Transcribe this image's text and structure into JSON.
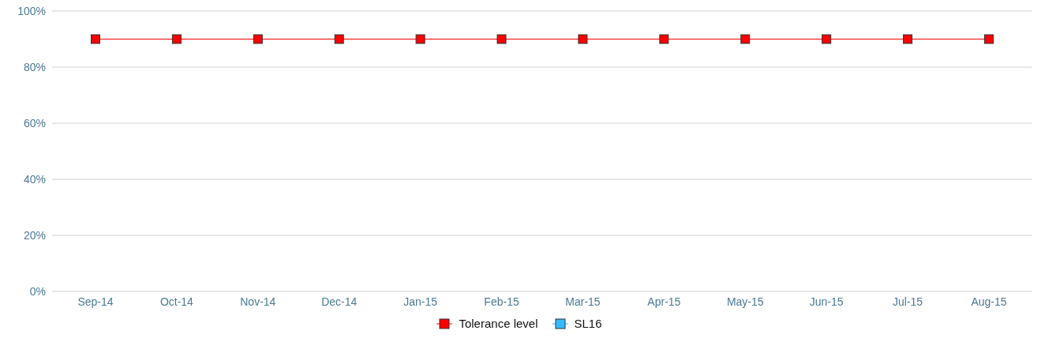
{
  "chart_data": {
    "type": "line",
    "categories": [
      "Sep-14",
      "Oct-14",
      "Nov-14",
      "Dec-14",
      "Jan-15",
      "Feb-15",
      "Mar-15",
      "Apr-15",
      "May-15",
      "Jun-15",
      "Jul-15",
      "Aug-15"
    ],
    "series": [
      {
        "name": "Tolerance level",
        "color": "#ff0000",
        "values": [
          90,
          90,
          90,
          90,
          90,
          90,
          90,
          90,
          90,
          90,
          90,
          90
        ]
      },
      {
        "name": "SL16",
        "color": "#33bbff",
        "values": [
          null,
          null,
          null,
          null,
          null,
          null,
          null,
          null,
          null,
          null,
          null,
          null
        ]
      }
    ],
    "ylim": [
      0,
      100
    ],
    "yticks": [
      {
        "value": 0,
        "label": "0%"
      },
      {
        "value": 20,
        "label": "20%"
      },
      {
        "value": 40,
        "label": "40%"
      },
      {
        "value": 60,
        "label": "60%"
      },
      {
        "value": 80,
        "label": "80%"
      },
      {
        "value": 100,
        "label": "100%"
      }
    ],
    "grid": "y",
    "legend": "bottom",
    "marker": "square"
  }
}
